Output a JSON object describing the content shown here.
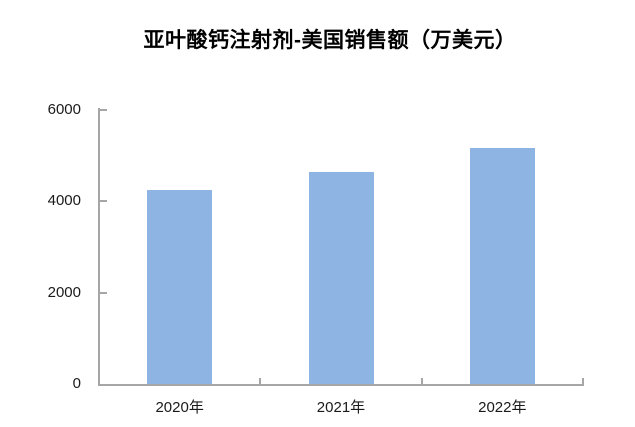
{
  "chart_data": {
    "type": "bar",
    "title": "亚叶酸钙注射剂-美国销售额（万美元）",
    "categories": [
      "2020年",
      "2021年",
      "2022年"
    ],
    "values": [
      4250,
      4650,
      5170
    ],
    "xlabel": "",
    "ylabel": "",
    "ylim": [
      0,
      6000
    ],
    "yticks": [
      0,
      2000,
      4000,
      6000
    ],
    "grid": false,
    "legend": "none",
    "bar_color": "#8EB4E3",
    "axis_color": "#A6A6A6",
    "text_color": "#1a1a1a",
    "title_color": "#000000",
    "background_color": "#FFFFFF"
  }
}
